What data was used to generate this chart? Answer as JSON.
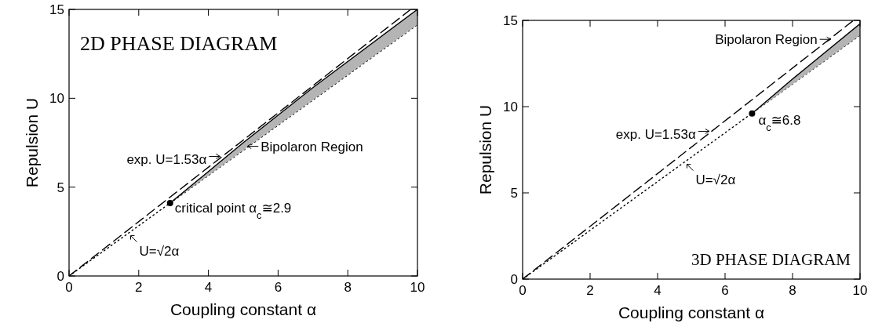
{
  "chart_data": [
    {
      "type": "line",
      "title": "2D PHASE DIAGRAM",
      "xlabel": "Coupling constant α",
      "ylabel": "Repulsion U",
      "xlim": [
        0,
        10
      ],
      "ylim": [
        0,
        15
      ],
      "xticks": [
        0,
        2,
        4,
        6,
        8,
        10
      ],
      "yticks": [
        0,
        5,
        10,
        15
      ],
      "series": [
        {
          "type": "line",
          "line_style": "dashed",
          "color": "#000000",
          "x": [
            0,
            9.8
          ],
          "values": [
            0,
            14.99
          ]
        },
        {
          "type": "line",
          "line_style": "dotted",
          "color": "#000000",
          "x": [
            0,
            10
          ],
          "values": [
            0,
            14.14
          ]
        },
        {
          "type": "line",
          "line_style": "solid",
          "color": "#000000",
          "x": [
            2.9,
            5,
            7,
            10
          ],
          "values": [
            4.1,
            7.5,
            10.6,
            15
          ],
          "lower": [
            4.1,
            7.07,
            9.9,
            14.14
          ],
          "upper": [
            4.1,
            7.5,
            10.6,
            15
          ]
        },
        {
          "type": "scatter",
          "marker": "circle",
          "color": "#000000",
          "x": [
            2.9
          ],
          "values": [
            4.1
          ]
        }
      ],
      "annotations": [
        {
          "text": "exp. U=1.53α",
          "x": 4.4,
          "y": 6.73
        },
        {
          "text": "Bipolaron Region",
          "x": 5.05,
          "y": 7.3
        },
        {
          "text": "critical point α$_{c}$≅2.9",
          "x": 2.9,
          "y": 4.1
        },
        {
          "text": "U=√2α",
          "x": 1.7,
          "y": 2.4
        }
      ]
    },
    {
      "type": "line",
      "title": "3D PHASE DIAGRAM",
      "xlabel": "Coupling constant α",
      "ylabel": "Repulsion U",
      "xlim": [
        0,
        10
      ],
      "ylim": [
        0,
        15
      ],
      "xticks": [
        0,
        2,
        4,
        6,
        8,
        10
      ],
      "yticks": [
        0,
        5,
        10,
        15
      ],
      "series": [
        {
          "type": "line",
          "line_style": "dashed",
          "color": "#000000",
          "x": [
            0,
            9.8
          ],
          "values": [
            0,
            14.99
          ]
        },
        {
          "type": "line",
          "line_style": "dotted",
          "color": "#000000",
          "x": [
            0,
            10
          ],
          "values": [
            0,
            14.14
          ]
        },
        {
          "type": "line",
          "line_style": "solid",
          "color": "#000000",
          "x": [
            6.8,
            8,
            10
          ],
          "values": [
            9.6,
            11.6,
            14.8
          ],
          "lower": [
            9.6,
            11.3,
            14.14
          ],
          "upper": [
            9.6,
            11.6,
            14.8
          ]
        },
        {
          "type": "scatter",
          "marker": "circle",
          "color": "#000000",
          "x": [
            6.8
          ],
          "values": [
            9.6
          ]
        }
      ],
      "annotations": [
        {
          "text": "Bipolaron Region",
          "x": 9.2,
          "y": 13.9
        },
        {
          "text": "exp. U=1.53α",
          "x": 5.6,
          "y": 8.57
        },
        {
          "text": "U=√2α",
          "x": 4.8,
          "y": 6.79
        },
        {
          "text": "α$_{c}$≅6.8",
          "x": 6.8,
          "y": 9.6
        }
      ]
    }
  ]
}
